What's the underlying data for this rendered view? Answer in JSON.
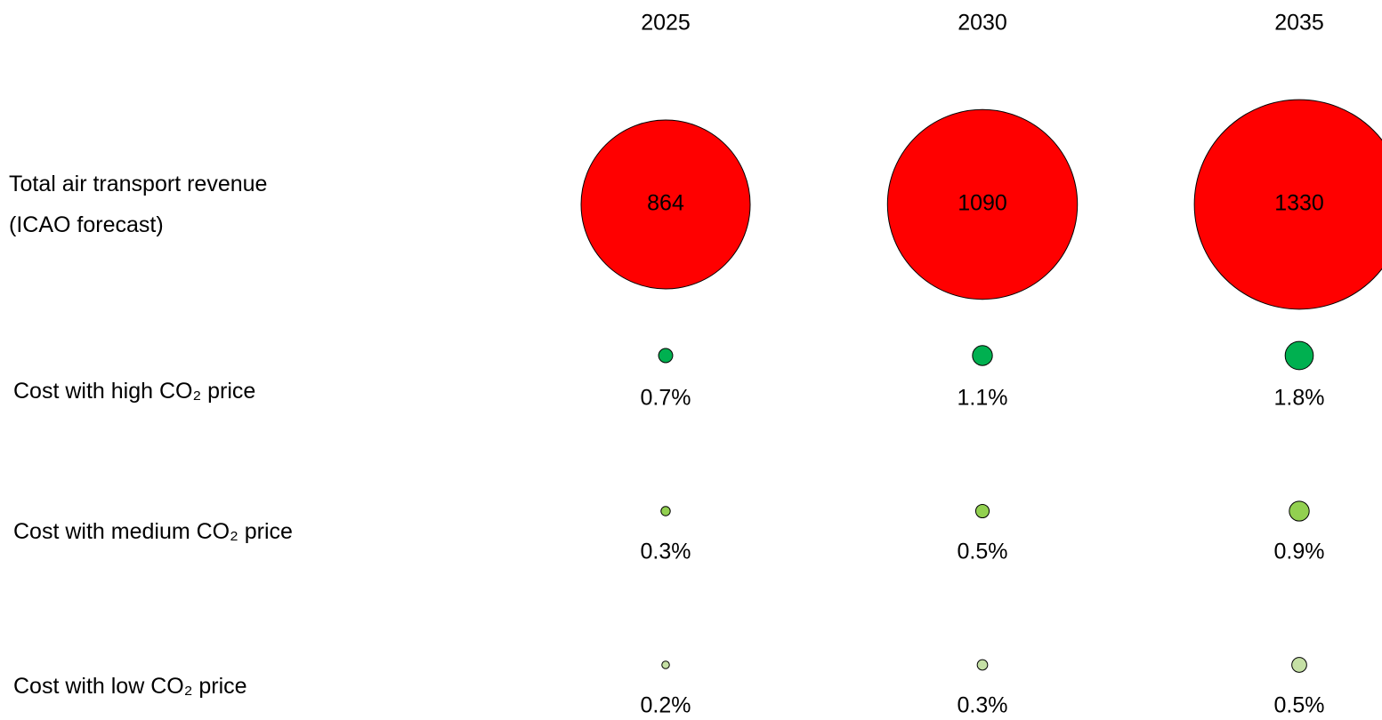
{
  "chart_data": {
    "type": "bubble",
    "categories": [
      "2025",
      "2030",
      "2035"
    ],
    "series": [
      {
        "name": "Total air transport revenue (ICAO forecast)",
        "color": "#ff0000",
        "values": [
          864,
          1090,
          1330
        ]
      },
      {
        "name": "Cost with high CO₂ price",
        "color": "#00b050",
        "values": [
          0.7,
          1.1,
          1.8
        ],
        "value_labels": [
          "0.7%",
          "1.1%",
          "1.8%"
        ]
      },
      {
        "name": "Cost with medium CO₂ price",
        "color": "#92d050",
        "values": [
          0.3,
          0.5,
          0.9
        ],
        "value_labels": [
          "0.3%",
          "0.5%",
          "0.9%"
        ]
      },
      {
        "name": "Cost with low CO₂ price",
        "color": "#c5e0a5",
        "values": [
          0.2,
          0.3,
          0.5
        ],
        "value_labels": [
          "0.2%",
          "0.3%",
          "0.5%"
        ]
      }
    ]
  }
}
